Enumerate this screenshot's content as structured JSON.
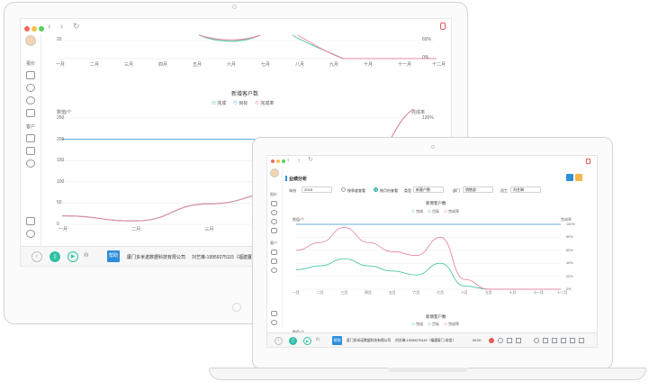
{
  "colors": {
    "teal": "#4fc4a6",
    "blue": "#6aaedd",
    "pink": "#e889a3",
    "accent": "#2f8ed9"
  },
  "desktop": {
    "sidebar": {
      "section1_label": "报价",
      "section2_label": "客户"
    },
    "top_chart": {
      "ytick_left": "20",
      "ytick_right_top": "65%",
      "ytick_right_bottom": "0%",
      "months": [
        "一月",
        "二月",
        "三月",
        "四月",
        "五月",
        "六月",
        "七月",
        "八月",
        "九月",
        "十月",
        "十一月",
        "十二月"
      ]
    },
    "bottom_chart": {
      "title": "新增客户数",
      "legend": [
        "完成",
        "目标",
        "完成率"
      ],
      "y_left_label": "数值/个",
      "y_right_label": "完成率",
      "left_ticks": [
        "250",
        "200",
        "150",
        "100",
        "50",
        "0"
      ],
      "right_ticks": [
        "120%",
        "100%"
      ],
      "months": [
        "一月",
        "二月",
        "三月",
        "四月",
        "五月",
        "六月"
      ]
    },
    "bottom_bar": {
      "badge": "帮助",
      "company": "厦门多米诺数据科技有限公司",
      "contact": "刘艺琳-19959275115（福建厦门"
    }
  },
  "chart_data": [
    {
      "type": "line",
      "title": "新增客户数",
      "x": [
        "一月",
        "二月",
        "三月",
        "四月",
        "五月",
        "六月"
      ],
      "series": [
        {
          "name": "完成",
          "values": [
            20,
            8,
            48,
            75,
            125,
            285
          ]
        },
        {
          "name": "目标",
          "values": [
            200,
            200,
            200,
            200,
            200,
            200
          ]
        },
        {
          "name": "完成率",
          "values": [
            20,
            8,
            48,
            75,
            125,
            290
          ]
        }
      ],
      "ylabel": "数值/个",
      "ylim": [
        0,
        250
      ]
    },
    {
      "type": "line",
      "title": "新增客户数",
      "x": [
        "一月",
        "二月",
        "三月",
        "四月",
        "五月",
        "六月",
        "七月",
        "八月",
        "九月",
        "十月",
        "十一月",
        "十二月"
      ],
      "series": [
        {
          "name": "完成",
          "values": [
            30,
            36,
            47,
            36,
            28,
            22,
            40,
            5,
            0,
            0,
            0,
            0
          ]
        },
        {
          "name": "目标",
          "values": [
            100,
            100,
            100,
            100,
            100,
            100,
            100,
            100,
            100,
            100,
            100,
            100
          ]
        },
        {
          "name": "完成率",
          "values": [
            60,
            72,
            95,
            72,
            58,
            52,
            80,
            15,
            0,
            0,
            0,
            0
          ]
        }
      ],
      "ylabel": "数值/个",
      "ylim": [
        0,
        100
      ]
    }
  ],
  "laptop": {
    "title": "业绩分析",
    "filters": {
      "year_label": "年份",
      "year_value": "2018",
      "radio1": "按季度查看",
      "radio2": "按月份查看",
      "type_label": "类型",
      "type_value": "新客户数",
      "dept_label": "部门",
      "dept_value": "销售部",
      "staff_label": "员工",
      "staff_value": "刘艺琳"
    },
    "chart": {
      "title": "新增客户数",
      "legend": [
        "完成",
        "目标",
        "完成率"
      ],
      "y_left_label": "数值/个",
      "y_right_label": "完成率",
      "right_ticks": [
        "100%",
        "80%",
        "60%",
        "40%",
        "20%",
        "0%"
      ],
      "months": [
        "一月",
        "二月",
        "三月",
        "四月",
        "五月",
        "六月",
        "七月",
        "八月",
        "九月",
        "十月",
        "十一月",
        "十二月"
      ]
    },
    "second_chart_title": "新增客户数",
    "sidebar": {
      "section1_label": "报价",
      "section2_label": "客户"
    },
    "bottom_bar": {
      "badge": "帮助",
      "company": "厦门多米诺数据科技有限公司",
      "contact": "刘艺琳-19959275115（福建厦门-电信）",
      "time": "00:00"
    }
  }
}
